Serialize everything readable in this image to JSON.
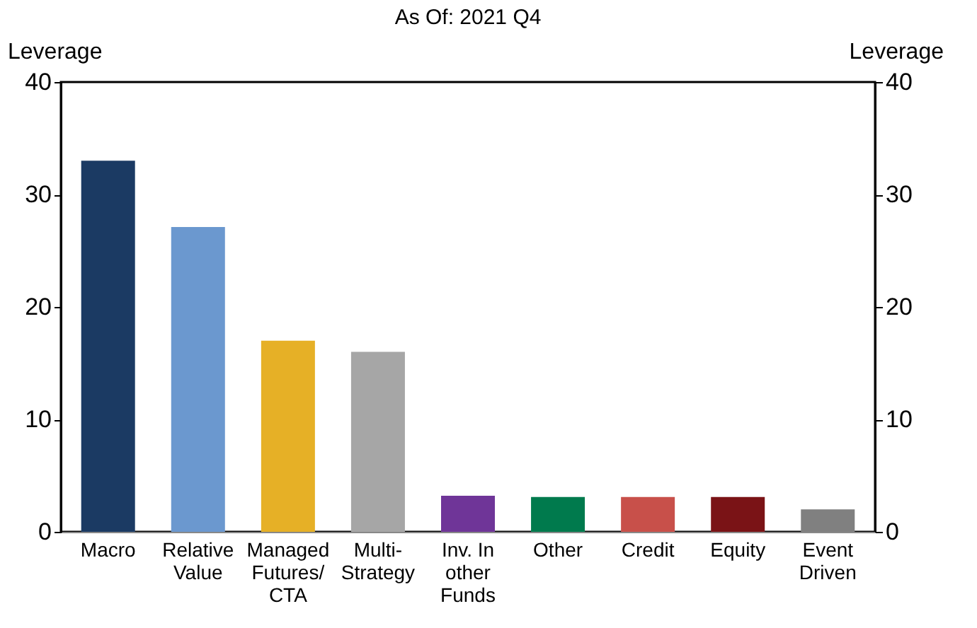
{
  "chart_data": {
    "type": "bar",
    "title": "As Of: 2021 Q4",
    "ylabel": "Leverage",
    "y2label": "Leverage",
    "categories": [
      "Macro",
      "Relative\nValue",
      "Managed\nFutures/\nCTA",
      "Multi-\nStrategy",
      "Inv. In\nother\nFunds",
      "Other",
      "Credit",
      "Equity",
      "Event\nDriven"
    ],
    "values": [
      33.0,
      27.1,
      17.0,
      16.0,
      3.2,
      3.1,
      3.1,
      3.1,
      2.0
    ],
    "colors": [
      "#1b3a63",
      "#6b98cf",
      "#e6b026",
      "#a6a6a6",
      "#6f3598",
      "#007a4d",
      "#c8504a",
      "#7a1316",
      "#808080"
    ],
    "ylim": [
      0,
      40
    ],
    "yticks": [
      0,
      10,
      20,
      30,
      40
    ],
    "y2lim": [
      0,
      40
    ],
    "y2ticks": [
      0,
      10,
      20,
      30,
      40
    ],
    "grid": false
  }
}
